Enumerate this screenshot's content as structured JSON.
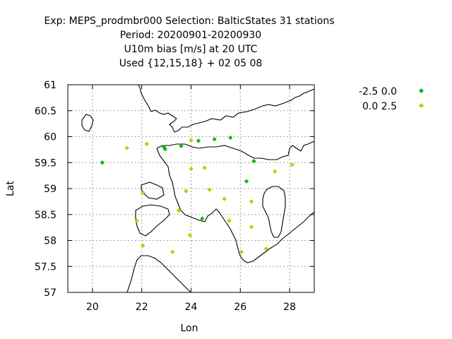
{
  "chart_data": {
    "type": "scatter",
    "title_lines": [
      "Exp: MEPS_prodmbr000   Selection: BalticStates     31 stations",
      "Period: 20200901-20200930",
      "U10m bias [m/s] at  20 UTC",
      "Used {12,15,18} + 02 05 08"
    ],
    "xlabel": "Lon",
    "ylabel": "Lat",
    "xlim": [
      19,
      29
    ],
    "ylim": [
      57,
      61
    ],
    "xticks": [
      "20",
      "22",
      "24",
      "26",
      "28"
    ],
    "yticks": [
      "57",
      "57.5",
      "58",
      "58.5",
      "59",
      "59.5",
      "60",
      "60.5",
      "61"
    ],
    "grid": true,
    "legend_position": "top-right outside",
    "series": [
      {
        "name": "-2.5 0.0",
        "color": "#00c000",
        "points": [
          [
            20.4,
            59.5
          ],
          [
            22.9,
            59.8
          ],
          [
            22.95,
            59.76
          ],
          [
            23.6,
            59.82
          ],
          [
            24.3,
            59.92
          ],
          [
            24.95,
            59.95
          ],
          [
            25.6,
            59.98
          ],
          [
            26.55,
            59.53
          ],
          [
            26.25,
            59.14
          ],
          [
            24.45,
            58.42
          ]
        ]
      },
      {
        "name": "0.0 2.5",
        "color": "#c8c800",
        "points": [
          [
            21.4,
            59.78
          ],
          [
            22.2,
            59.86
          ],
          [
            24.0,
            59.93
          ],
          [
            24.0,
            59.38
          ],
          [
            24.55,
            59.4
          ],
          [
            27.4,
            59.33
          ],
          [
            28.1,
            59.46
          ],
          [
            22.05,
            58.92
          ],
          [
            23.8,
            58.95
          ],
          [
            24.75,
            58.98
          ],
          [
            25.35,
            58.8
          ],
          [
            26.45,
            58.75
          ],
          [
            23.5,
            58.58
          ],
          [
            21.8,
            58.38
          ],
          [
            25.55,
            58.38
          ],
          [
            26.45,
            58.26
          ],
          [
            23.95,
            58.1
          ],
          [
            22.05,
            57.9
          ],
          [
            23.25,
            57.78
          ],
          [
            26.05,
            57.78
          ],
          [
            27.05,
            57.84
          ]
        ]
      }
    ]
  }
}
